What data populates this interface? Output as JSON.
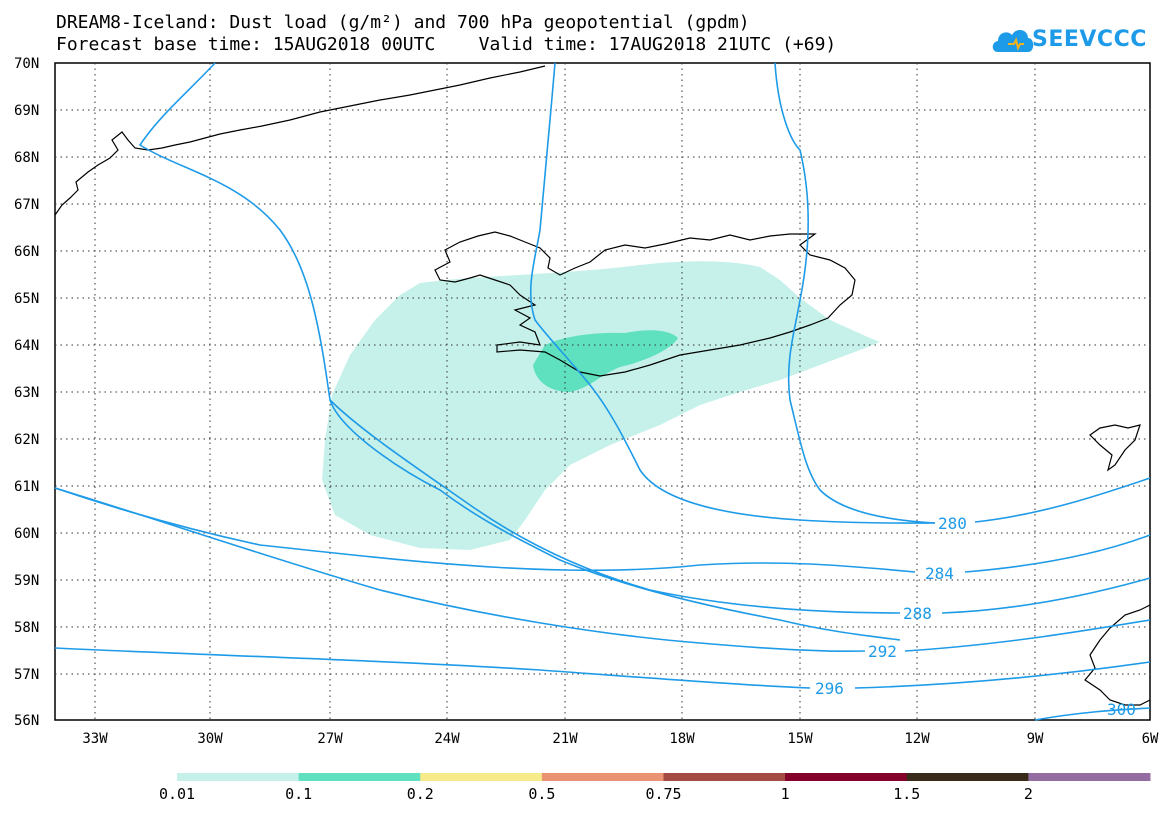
{
  "title_line1": "DREAM8-Iceland: Dust load (g/m²) and 700 hPa geopotential (gpdm)",
  "title_line2": "Forecast base time: 15AUG2018 00UTC    Valid time: 17AUG2018 21UTC (+69)",
  "logo": {
    "text": "SEEVCCC",
    "icon": "cloud-icon",
    "color": "#1e9be8"
  },
  "map": {
    "lon_range": [
      -34.5,
      -6
    ],
    "lat_range": [
      56,
      70
    ],
    "grid": true,
    "lat_labels": [
      "70N",
      "69N",
      "68N",
      "67N",
      "66N",
      "65N",
      "64N",
      "63N",
      "62N",
      "61N",
      "60N",
      "59N",
      "58N",
      "57N",
      "56N"
    ],
    "lon_labels": [
      "33W",
      "30W",
      "27W",
      "24W",
      "21W",
      "18W",
      "15W",
      "12W",
      "9W",
      "6W"
    ],
    "contour_color": "#1e9be8",
    "contour_labels": [
      "280",
      "284",
      "288",
      "292",
      "296",
      "300"
    ]
  },
  "colorbar": {
    "colors": [
      "#c6f1ea",
      "#5fe0be",
      "#f6ea8a",
      "#eb9272",
      "#a44b44",
      "#85022b",
      "#3a2a18",
      "#936d9f"
    ],
    "labels": [
      "0.01",
      "0.1",
      "0.2",
      "0.5",
      "0.75",
      "1",
      "1.5",
      "2"
    ]
  }
}
